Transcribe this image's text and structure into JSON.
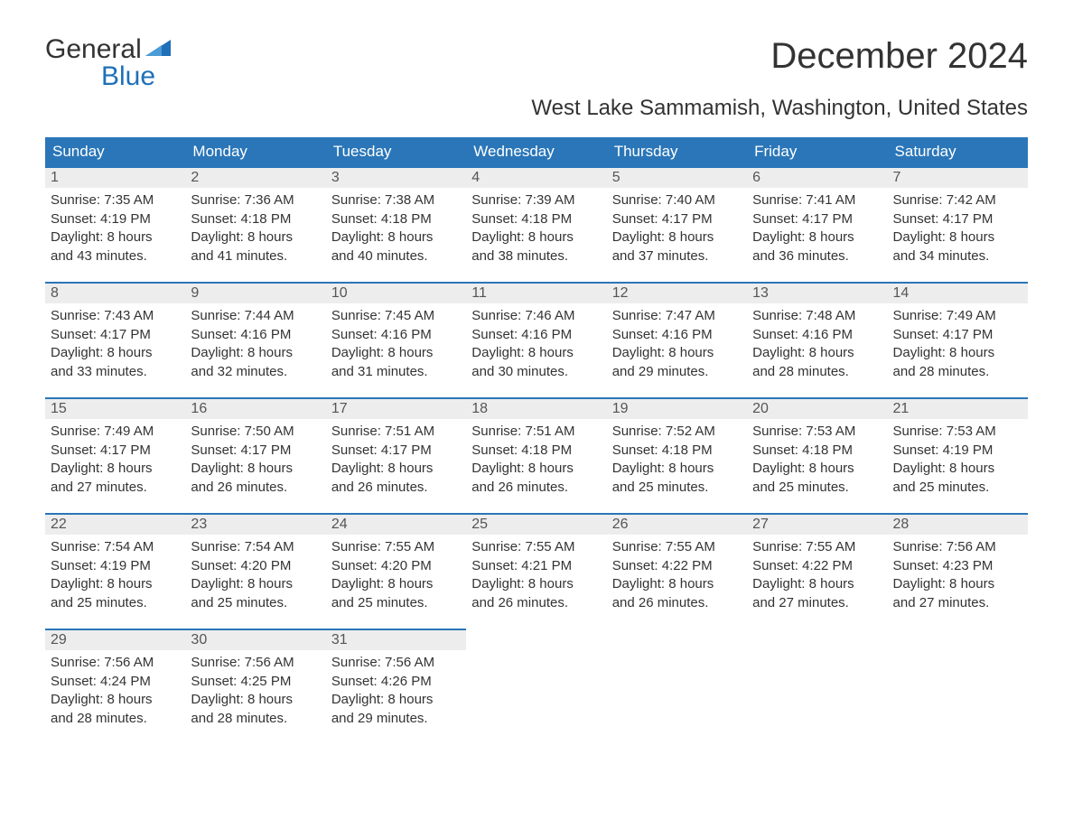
{
  "brand": {
    "word1": "General",
    "word2": "Blue"
  },
  "colors": {
    "accent": "#2a76b8",
    "header_bg": "#2a76b8",
    "header_text": "#ffffff",
    "daynum_bg": "#ededed",
    "body_text": "#333333",
    "background": "#ffffff"
  },
  "title": "December 2024",
  "subtitle": "West Lake Sammamish, Washington, United States",
  "day_headers": [
    "Sunday",
    "Monday",
    "Tuesday",
    "Wednesday",
    "Thursday",
    "Friday",
    "Saturday"
  ],
  "weeks": [
    [
      {
        "n": "1",
        "sr": "Sunrise: 7:35 AM",
        "ss": "Sunset: 4:19 PM",
        "d1": "Daylight: 8 hours",
        "d2": "and 43 minutes."
      },
      {
        "n": "2",
        "sr": "Sunrise: 7:36 AM",
        "ss": "Sunset: 4:18 PM",
        "d1": "Daylight: 8 hours",
        "d2": "and 41 minutes."
      },
      {
        "n": "3",
        "sr": "Sunrise: 7:38 AM",
        "ss": "Sunset: 4:18 PM",
        "d1": "Daylight: 8 hours",
        "d2": "and 40 minutes."
      },
      {
        "n": "4",
        "sr": "Sunrise: 7:39 AM",
        "ss": "Sunset: 4:18 PM",
        "d1": "Daylight: 8 hours",
        "d2": "and 38 minutes."
      },
      {
        "n": "5",
        "sr": "Sunrise: 7:40 AM",
        "ss": "Sunset: 4:17 PM",
        "d1": "Daylight: 8 hours",
        "d2": "and 37 minutes."
      },
      {
        "n": "6",
        "sr": "Sunrise: 7:41 AM",
        "ss": "Sunset: 4:17 PM",
        "d1": "Daylight: 8 hours",
        "d2": "and 36 minutes."
      },
      {
        "n": "7",
        "sr": "Sunrise: 7:42 AM",
        "ss": "Sunset: 4:17 PM",
        "d1": "Daylight: 8 hours",
        "d2": "and 34 minutes."
      }
    ],
    [
      {
        "n": "8",
        "sr": "Sunrise: 7:43 AM",
        "ss": "Sunset: 4:17 PM",
        "d1": "Daylight: 8 hours",
        "d2": "and 33 minutes."
      },
      {
        "n": "9",
        "sr": "Sunrise: 7:44 AM",
        "ss": "Sunset: 4:16 PM",
        "d1": "Daylight: 8 hours",
        "d2": "and 32 minutes."
      },
      {
        "n": "10",
        "sr": "Sunrise: 7:45 AM",
        "ss": "Sunset: 4:16 PM",
        "d1": "Daylight: 8 hours",
        "d2": "and 31 minutes."
      },
      {
        "n": "11",
        "sr": "Sunrise: 7:46 AM",
        "ss": "Sunset: 4:16 PM",
        "d1": "Daylight: 8 hours",
        "d2": "and 30 minutes."
      },
      {
        "n": "12",
        "sr": "Sunrise: 7:47 AM",
        "ss": "Sunset: 4:16 PM",
        "d1": "Daylight: 8 hours",
        "d2": "and 29 minutes."
      },
      {
        "n": "13",
        "sr": "Sunrise: 7:48 AM",
        "ss": "Sunset: 4:16 PM",
        "d1": "Daylight: 8 hours",
        "d2": "and 28 minutes."
      },
      {
        "n": "14",
        "sr": "Sunrise: 7:49 AM",
        "ss": "Sunset: 4:17 PM",
        "d1": "Daylight: 8 hours",
        "d2": "and 28 minutes."
      }
    ],
    [
      {
        "n": "15",
        "sr": "Sunrise: 7:49 AM",
        "ss": "Sunset: 4:17 PM",
        "d1": "Daylight: 8 hours",
        "d2": "and 27 minutes."
      },
      {
        "n": "16",
        "sr": "Sunrise: 7:50 AM",
        "ss": "Sunset: 4:17 PM",
        "d1": "Daylight: 8 hours",
        "d2": "and 26 minutes."
      },
      {
        "n": "17",
        "sr": "Sunrise: 7:51 AM",
        "ss": "Sunset: 4:17 PM",
        "d1": "Daylight: 8 hours",
        "d2": "and 26 minutes."
      },
      {
        "n": "18",
        "sr": "Sunrise: 7:51 AM",
        "ss": "Sunset: 4:18 PM",
        "d1": "Daylight: 8 hours",
        "d2": "and 26 minutes."
      },
      {
        "n": "19",
        "sr": "Sunrise: 7:52 AM",
        "ss": "Sunset: 4:18 PM",
        "d1": "Daylight: 8 hours",
        "d2": "and 25 minutes."
      },
      {
        "n": "20",
        "sr": "Sunrise: 7:53 AM",
        "ss": "Sunset: 4:18 PM",
        "d1": "Daylight: 8 hours",
        "d2": "and 25 minutes."
      },
      {
        "n": "21",
        "sr": "Sunrise: 7:53 AM",
        "ss": "Sunset: 4:19 PM",
        "d1": "Daylight: 8 hours",
        "d2": "and 25 minutes."
      }
    ],
    [
      {
        "n": "22",
        "sr": "Sunrise: 7:54 AM",
        "ss": "Sunset: 4:19 PM",
        "d1": "Daylight: 8 hours",
        "d2": "and 25 minutes."
      },
      {
        "n": "23",
        "sr": "Sunrise: 7:54 AM",
        "ss": "Sunset: 4:20 PM",
        "d1": "Daylight: 8 hours",
        "d2": "and 25 minutes."
      },
      {
        "n": "24",
        "sr": "Sunrise: 7:55 AM",
        "ss": "Sunset: 4:20 PM",
        "d1": "Daylight: 8 hours",
        "d2": "and 25 minutes."
      },
      {
        "n": "25",
        "sr": "Sunrise: 7:55 AM",
        "ss": "Sunset: 4:21 PM",
        "d1": "Daylight: 8 hours",
        "d2": "and 26 minutes."
      },
      {
        "n": "26",
        "sr": "Sunrise: 7:55 AM",
        "ss": "Sunset: 4:22 PM",
        "d1": "Daylight: 8 hours",
        "d2": "and 26 minutes."
      },
      {
        "n": "27",
        "sr": "Sunrise: 7:55 AM",
        "ss": "Sunset: 4:22 PM",
        "d1": "Daylight: 8 hours",
        "d2": "and 27 minutes."
      },
      {
        "n": "28",
        "sr": "Sunrise: 7:56 AM",
        "ss": "Sunset: 4:23 PM",
        "d1": "Daylight: 8 hours",
        "d2": "and 27 minutes."
      }
    ],
    [
      {
        "n": "29",
        "sr": "Sunrise: 7:56 AM",
        "ss": "Sunset: 4:24 PM",
        "d1": "Daylight: 8 hours",
        "d2": "and 28 minutes."
      },
      {
        "n": "30",
        "sr": "Sunrise: 7:56 AM",
        "ss": "Sunset: 4:25 PM",
        "d1": "Daylight: 8 hours",
        "d2": "and 28 minutes."
      },
      {
        "n": "31",
        "sr": "Sunrise: 7:56 AM",
        "ss": "Sunset: 4:26 PM",
        "d1": "Daylight: 8 hours",
        "d2": "and 29 minutes."
      },
      null,
      null,
      null,
      null
    ]
  ]
}
